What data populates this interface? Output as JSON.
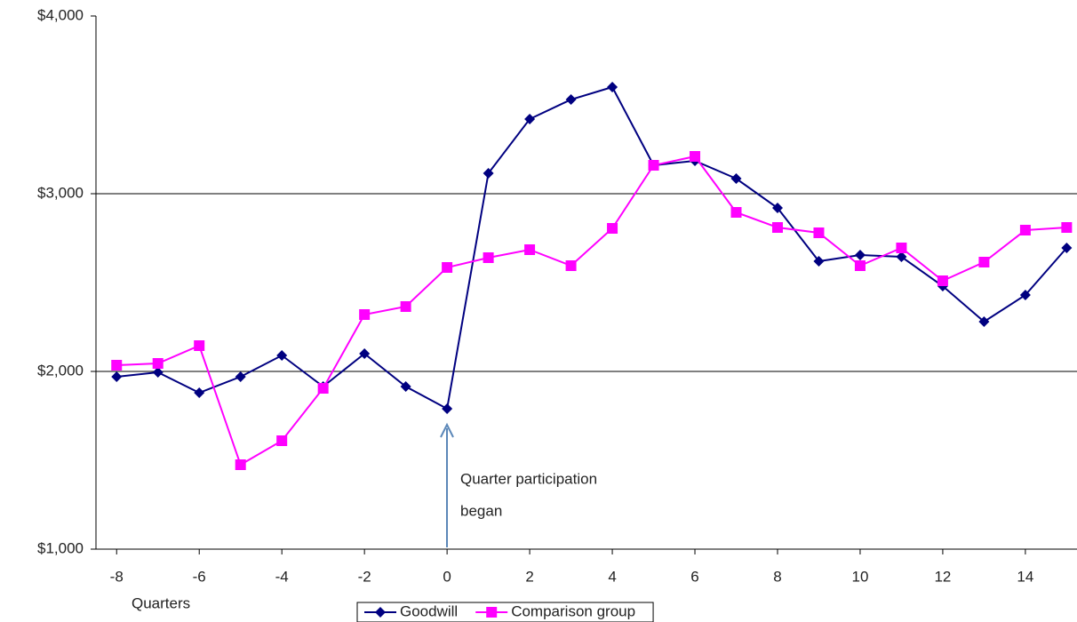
{
  "chart_data": {
    "type": "line",
    "x": [
      -8,
      -7,
      -6,
      -5,
      -4,
      -3,
      -2,
      -1,
      0,
      1,
      2,
      3,
      4,
      5,
      6,
      7,
      8,
      9,
      10,
      11,
      12,
      13,
      14,
      15
    ],
    "series": [
      {
        "name": "Goodwill",
        "color": "#000080",
        "marker": "diamond",
        "values": [
          1970,
          1995,
          1880,
          1970,
          2090,
          1915,
          2100,
          1915,
          1790,
          3115,
          3420,
          3530,
          3600,
          3160,
          3185,
          3085,
          2920,
          2620,
          2655,
          2645,
          2480,
          2280,
          2430,
          2695
        ]
      },
      {
        "name": "Comparison group",
        "color": "#ff00ff",
        "marker": "square",
        "values": [
          2035,
          2045,
          2145,
          1475,
          1610,
          1905,
          2320,
          2365,
          2585,
          2640,
          2685,
          2595,
          2805,
          3160,
          3210,
          2895,
          2810,
          2780,
          2595,
          2695,
          2510,
          2615,
          2795,
          2810
        ]
      }
    ],
    "xlim": [
      -8.5,
      15.25
    ],
    "xticks": [
      -8,
      -6,
      -4,
      -2,
      0,
      2,
      4,
      6,
      8,
      10,
      12,
      14
    ],
    "ylim": [
      1000,
      4000
    ],
    "yticks": [
      {
        "value": 1000,
        "label": "$1,000"
      },
      {
        "value": 2000,
        "label": "$2,000"
      },
      {
        "value": 3000,
        "label": "$3,000"
      },
      {
        "value": 4000,
        "label": "$4,000"
      }
    ],
    "x_label": "Quarters",
    "annotation": [
      "Quarter participation",
      "began"
    ],
    "grid": true,
    "legend": "bottom"
  }
}
